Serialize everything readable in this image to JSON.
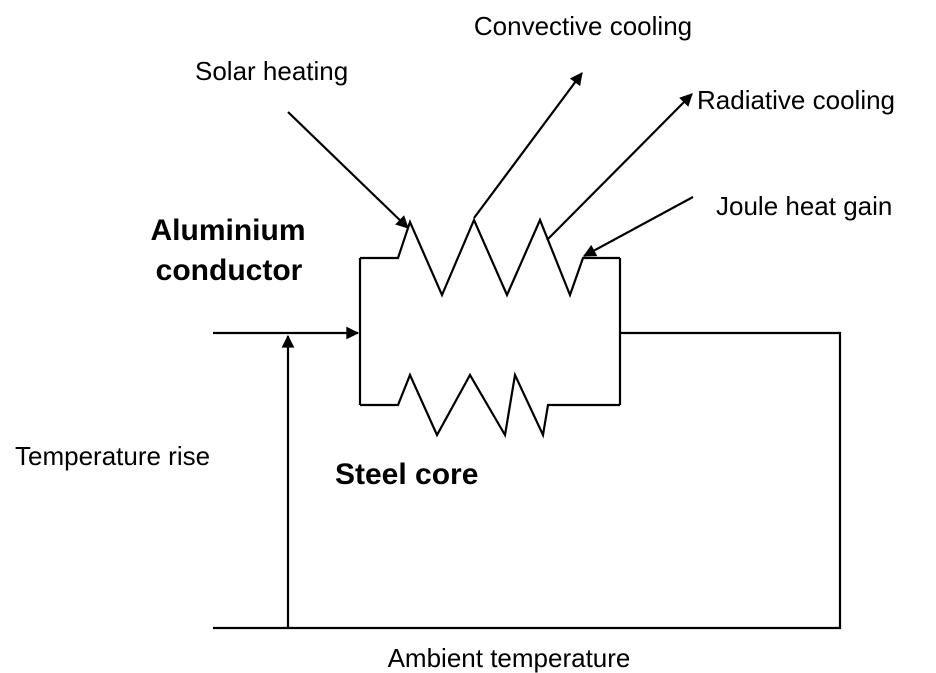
{
  "labels": {
    "convective_cooling": "Convective cooling",
    "solar_heating": "Solar heating",
    "radiative_cooling": "Radiative cooling",
    "joule_heat_gain": "Joule heat gain",
    "aluminium_conductor": [
      "Aluminium",
      "conductor"
    ],
    "temperature_rise": "Temperature rise",
    "steel_core": "Steel core",
    "ambient_temperature": "Ambient temperature"
  }
}
